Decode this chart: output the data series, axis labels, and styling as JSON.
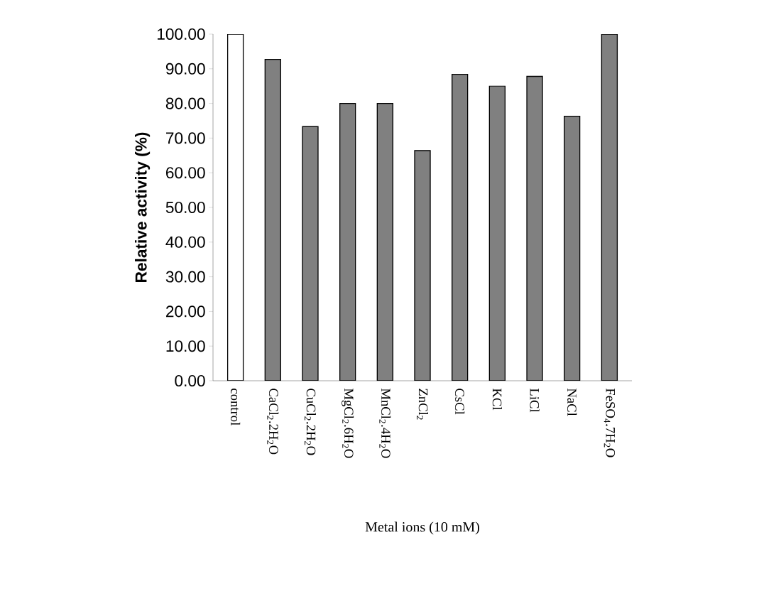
{
  "chart_data": {
    "type": "bar",
    "xlabel": "Metal ions (10 mM)",
    "ylabel": "Relative activity (%)",
    "categories": [
      "control",
      "CaCl$_{2}$.2H$_{2}$O",
      "CuCl$_{2}$.2H$_{2}$O",
      "MgCl$_{2}$.6H$_{2}$O",
      "MnCl$_{2}$.4H$_{2}$O",
      "ZnCl$_{2}$",
      "CsCl",
      "KCl",
      "LiCl",
      "NaCl",
      "FeSO$_{4}$.7H$_{2}$O"
    ],
    "values": [
      100,
      92.7,
      73.3,
      80,
      80,
      66.4,
      88.4,
      85,
      87.8,
      76.3,
      100
    ],
    "colors": [
      "#ffffff",
      "#808080",
      "#808080",
      "#808080",
      "#808080",
      "#808080",
      "#808080",
      "#808080",
      "#808080",
      "#808080",
      "#808080"
    ],
    "ylim": [
      0,
      100
    ],
    "yticks": [
      {
        "value": 0,
        "label": "0.00"
      },
      {
        "value": 10,
        "label": "10.00"
      },
      {
        "value": 20,
        "label": "20.00"
      },
      {
        "value": 30,
        "label": "30.00"
      },
      {
        "value": 40,
        "label": "40.00"
      },
      {
        "value": 50,
        "label": "50.00"
      },
      {
        "value": 60,
        "label": "60.00"
      },
      {
        "value": 70,
        "label": "70.00"
      },
      {
        "value": 80,
        "label": "80.00"
      },
      {
        "value": 90,
        "label": "90.00"
      },
      {
        "value": 100,
        "label": "100.00"
      }
    ],
    "grid": false
  }
}
